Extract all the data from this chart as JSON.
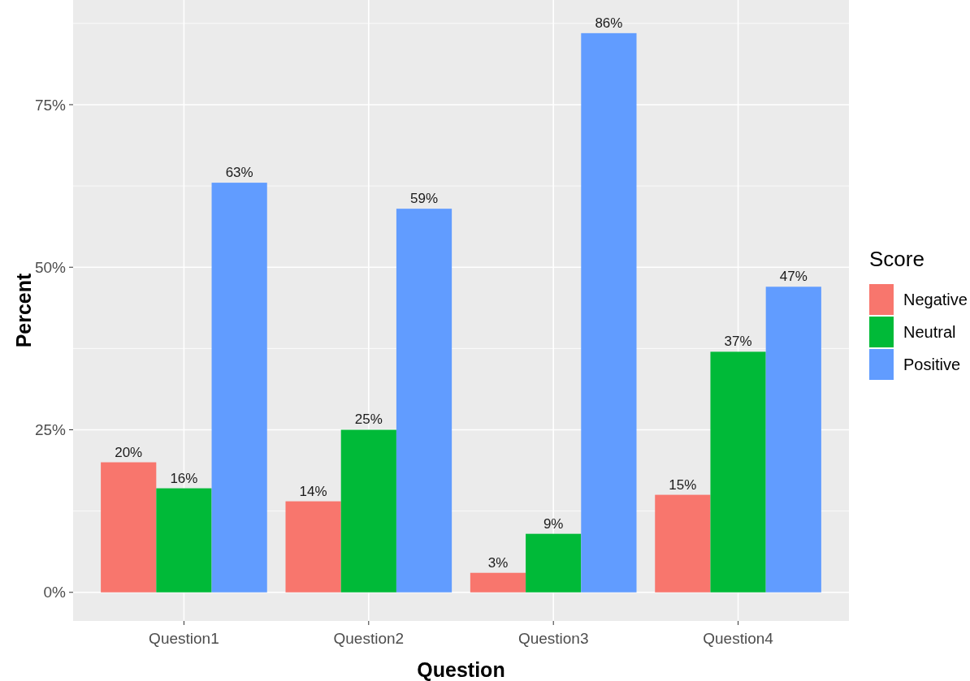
{
  "chart_data": {
    "type": "bar",
    "xlabel": "Question",
    "ylabel": "Percent",
    "legend_title": "Score",
    "categories": [
      "Question1",
      "Question2",
      "Question3",
      "Question4"
    ],
    "series": [
      {
        "name": "Negative",
        "color": "#f8766d",
        "values": [
          20,
          14,
          3,
          15
        ],
        "value_labels": [
          "20%",
          "14%",
          "3%",
          "15%"
        ]
      },
      {
        "name": "Neutral",
        "color": "#00ba38",
        "values": [
          16,
          25,
          9,
          37
        ],
        "value_labels": [
          "16%",
          "25%",
          "9%",
          "37%"
        ]
      },
      {
        "name": "Positive",
        "color": "#619cff",
        "values": [
          63,
          59,
          86,
          47
        ],
        "value_labels": [
          "63%",
          "59%",
          "86%",
          "47%"
        ]
      }
    ],
    "ylim": [
      -4.4,
      91.1
    ],
    "yticks": [
      {
        "value": 0,
        "label": "0%"
      },
      {
        "value": 12.5,
        "label": null
      },
      {
        "value": 25,
        "label": "25%"
      },
      {
        "value": 37.5,
        "label": null
      },
      {
        "value": 50,
        "label": "50%"
      },
      {
        "value": 62.5,
        "label": null
      },
      {
        "value": 75,
        "label": "75%"
      },
      {
        "value": 87.5,
        "label": null
      }
    ],
    "grid": true,
    "legend": "right"
  }
}
